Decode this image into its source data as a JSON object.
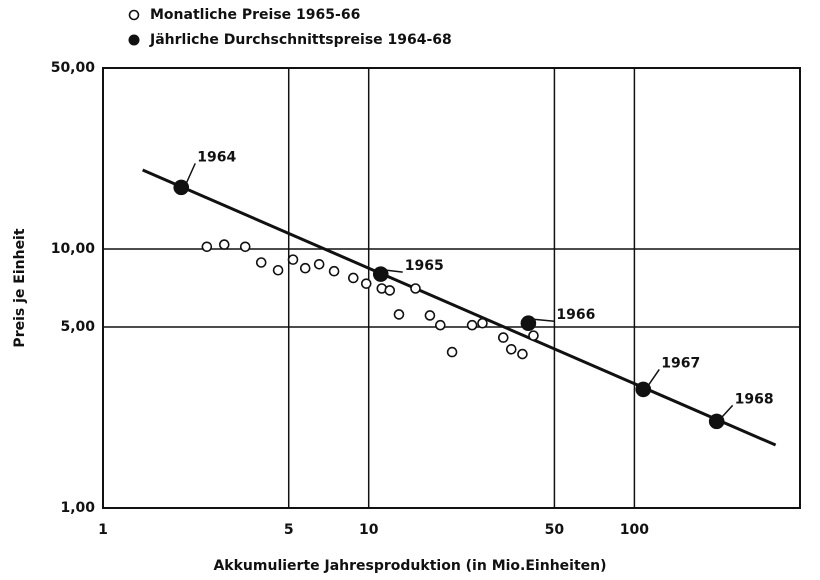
{
  "chart_data": {
    "type": "scatter",
    "x_label": "Akkumulierte  Jahresproduktion (in Mio.Einheiten)",
    "y_label": "Preis je Einheit",
    "xscale": "log",
    "yscale": "log",
    "xlim": [
      1,
      420
    ],
    "ylim": [
      1,
      50
    ],
    "xticks": [
      1,
      5,
      10,
      50,
      100
    ],
    "yticks": [
      {
        "value": 1,
        "label": "1,00"
      },
      {
        "value": 5,
        "label": "5,00"
      },
      {
        "value": 10,
        "label": "10,00"
      },
      {
        "value": 50,
        "label": "50,00"
      }
    ],
    "grid": true,
    "legend": "top-left",
    "series": [
      {
        "name": "Monatliche Preise 1965-66",
        "marker": "open",
        "color": "#111111",
        "x": [
          2.46,
          2.86,
          3.43,
          3.94,
          4.56,
          5.19,
          5.77,
          6.51,
          7.41,
          8.75,
          9.79,
          11.2,
          12.0,
          13.0,
          15.0,
          17.0,
          18.6,
          20.6,
          24.5,
          26.8,
          32.1,
          34.4,
          37.9,
          41.7
        ],
        "values": [
          10.2,
          10.4,
          10.2,
          8.87,
          8.28,
          9.1,
          8.43,
          8.73,
          8.21,
          7.73,
          7.35,
          7.04,
          6.92,
          5.59,
          7.04,
          5.54,
          5.08,
          4.0,
          5.08,
          5.17,
          4.55,
          4.1,
          3.93,
          4.63
        ]
      },
      {
        "name": "Jährliche Durchschnittspreise 1964-68",
        "marker": "filled",
        "color": "#111111",
        "x": [
          1.97,
          11.1,
          39.9,
          108,
          204
        ],
        "values": [
          17.3,
          8.0,
          5.17,
          2.87,
          2.16
        ],
        "labels": [
          "1964",
          "1965",
          "1966",
          "1967",
          "1968"
        ]
      }
    ],
    "trend_line": {
      "x": [
        1.41,
        340
      ],
      "values": [
        20.2,
        1.75
      ],
      "color": "#111111"
    }
  }
}
